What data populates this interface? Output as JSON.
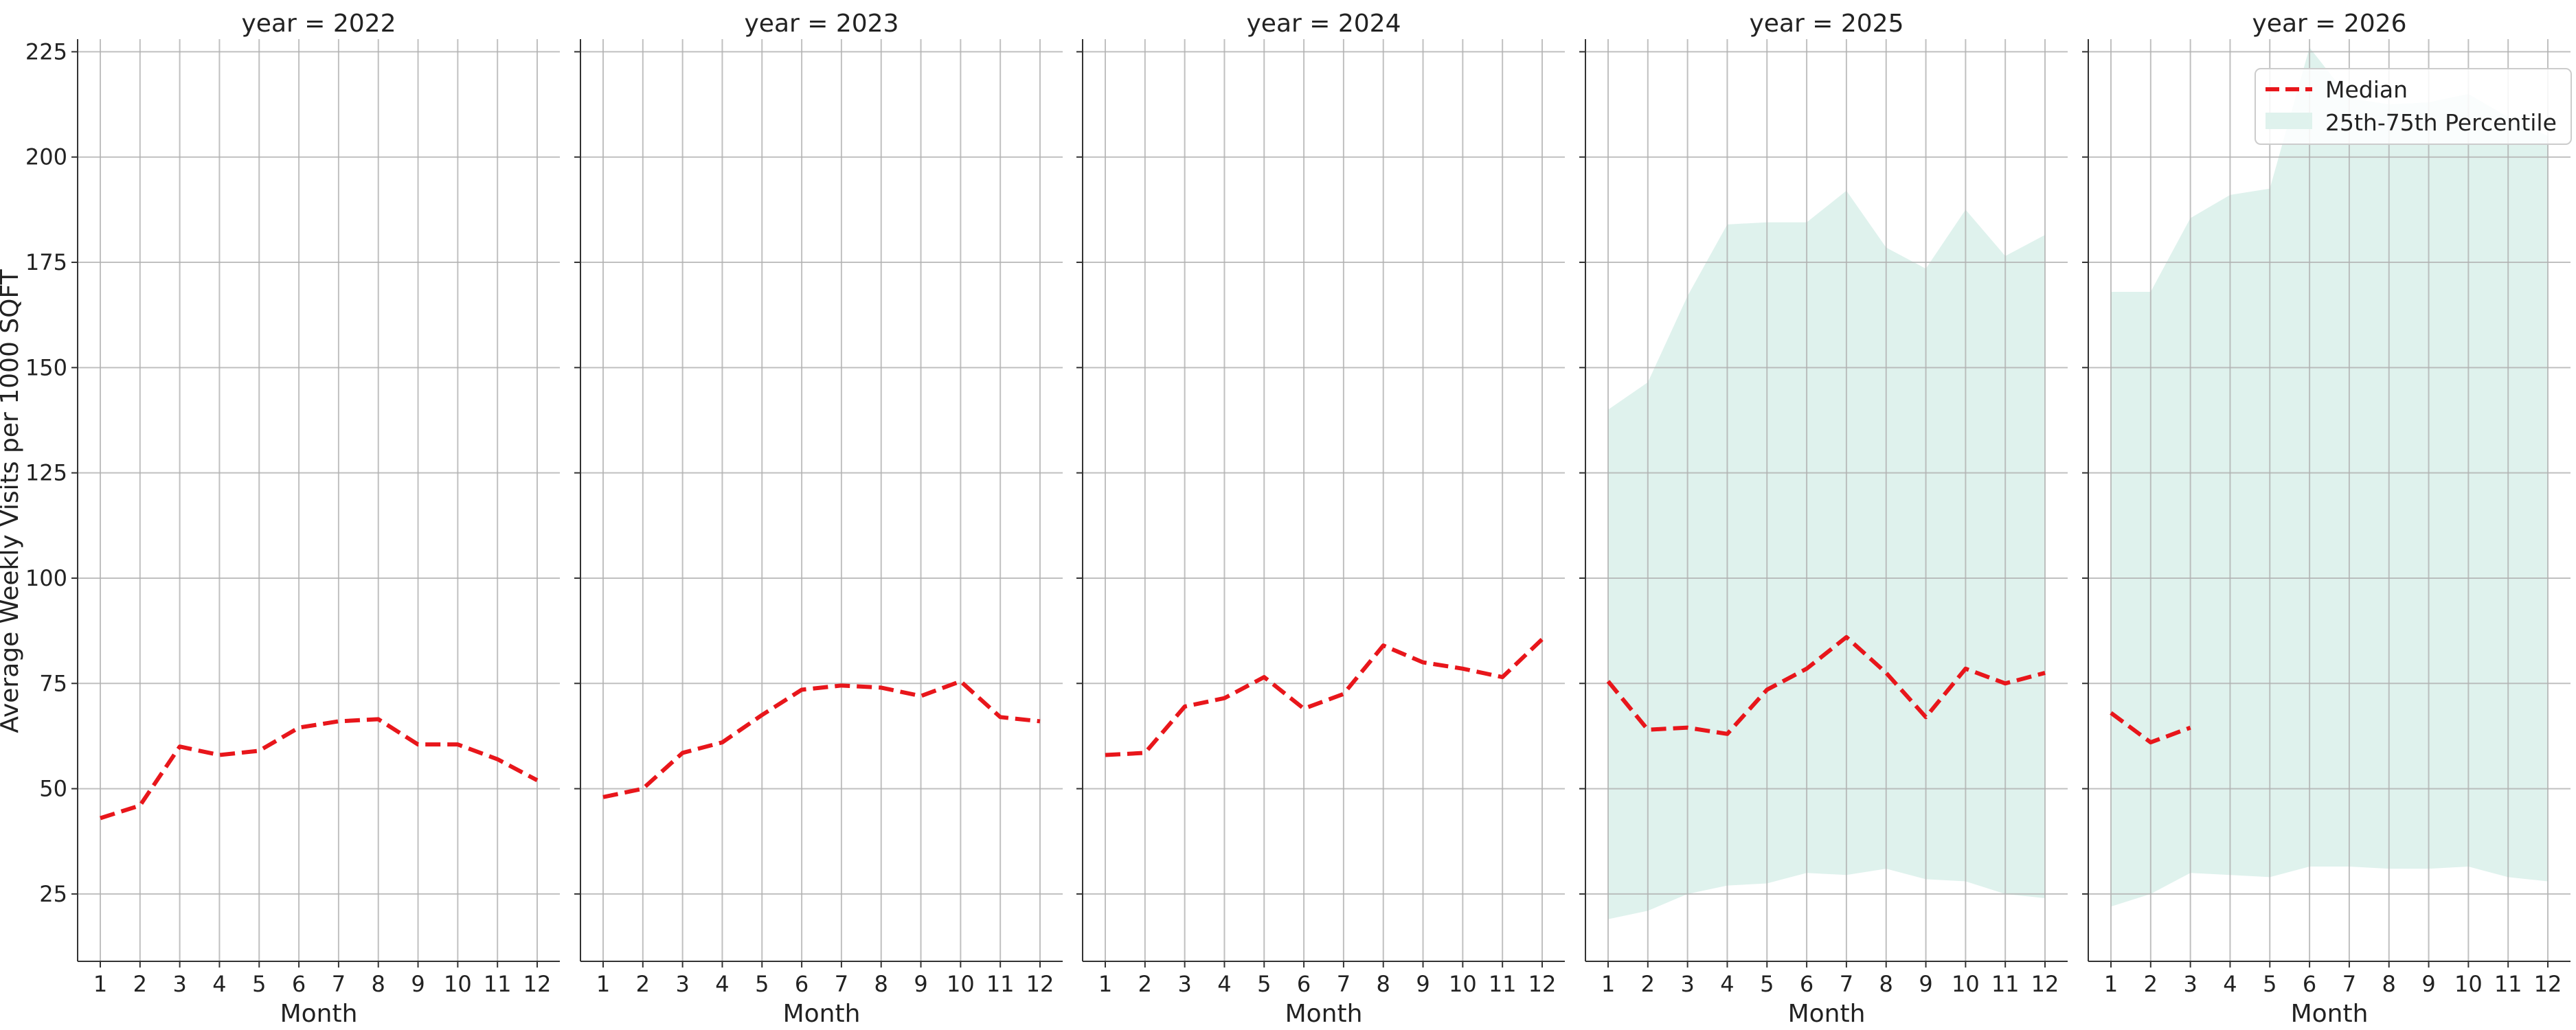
{
  "chart_data": {
    "type": "line",
    "ylabel": "Average Weekly Visits per 1000 SQFT",
    "xlabel": "Month",
    "ylim": [
      9,
      228
    ],
    "yticks": [
      25,
      50,
      75,
      100,
      125,
      150,
      175,
      200,
      225
    ],
    "xticks": [
      1,
      2,
      3,
      4,
      5,
      6,
      7,
      8,
      9,
      10,
      11,
      12
    ],
    "grid": true,
    "legend": {
      "placement": "top-right",
      "median_label": "Median",
      "band_label": "25th-75th Percentile"
    },
    "colors": {
      "median": "#e8161b",
      "band": "#dff2ed"
    },
    "panels": [
      {
        "title": "year = 2022",
        "median": [
          43,
          46,
          60,
          58,
          59,
          64.5,
          66,
          66.5,
          60.5,
          60.5,
          57,
          52
        ],
        "band_low": [],
        "band_high": []
      },
      {
        "title": "year = 2023",
        "median": [
          48,
          50,
          58.5,
          61,
          67.5,
          73.5,
          74.5,
          74,
          72,
          75.5,
          67,
          66
        ],
        "band_low": [],
        "band_high": []
      },
      {
        "title": "year = 2024",
        "median": [
          58,
          58.5,
          69.5,
          71.5,
          76.5,
          69,
          72.5,
          84,
          80,
          78.5,
          76.5,
          85.5
        ],
        "band_low": [],
        "band_high": []
      },
      {
        "title": "year = 2025",
        "median": [
          75.5,
          64,
          64.5,
          63,
          73.5,
          78.5,
          86,
          77.5,
          67,
          78.5,
          75,
          77.5
        ],
        "band_low": [
          19,
          21,
          25,
          27,
          27.5,
          30,
          29.5,
          31,
          28.5,
          28,
          25,
          24
        ],
        "band_high": [
          140,
          146.5,
          167,
          184,
          184.5,
          184.5,
          192,
          178.5,
          173.5,
          187.5,
          176.5,
          181.5
        ]
      },
      {
        "title": "year = 2026",
        "median": [
          68,
          61,
          64.5
        ],
        "band_low": [
          22,
          25,
          30,
          29.5,
          29,
          31.5,
          31.5,
          31,
          31,
          31.5,
          29,
          28
        ],
        "band_high": [
          168,
          168,
          185.5,
          191,
          192.5,
          226,
          214,
          212.5,
          213,
          215,
          209.5,
          205
        ]
      }
    ]
  }
}
